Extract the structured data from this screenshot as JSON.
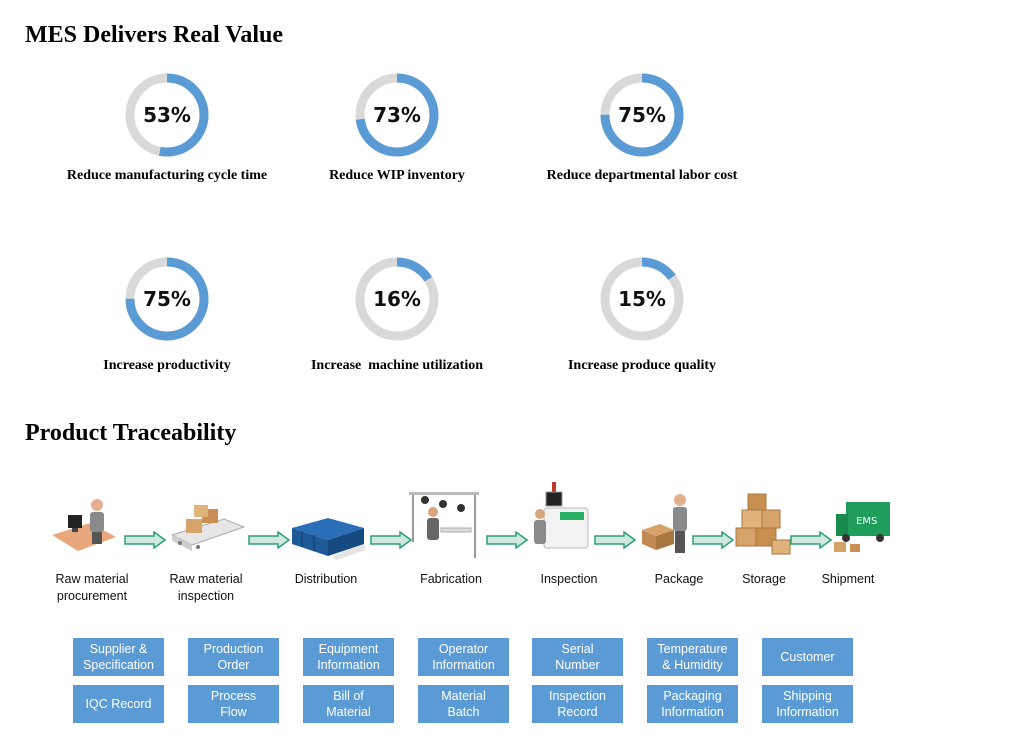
{
  "value_section": {
    "title": "MES Delivers Real Value",
    "metrics": [
      {
        "percent": 53,
        "percent_text": "53%",
        "label": "Reduce manufacturing cycle time"
      },
      {
        "percent": 73,
        "percent_text": "73%",
        "label": "Reduce WIP inventory"
      },
      {
        "percent": 75,
        "percent_text": "75%",
        "label": "Reduce departmental labor cost"
      },
      {
        "percent": 75,
        "percent_text": "75%",
        "label": "Increase productivity"
      },
      {
        "percent": 16,
        "percent_text": "16%",
        "label": "Increase  machine utilization"
      },
      {
        "percent": 15,
        "percent_text": "15%",
        "label": "Increase produce quality"
      }
    ],
    "ring_color": "#5b9bd5",
    "track_color": "#d9d9d9"
  },
  "trace_section": {
    "title": "Product Traceability",
    "steps": [
      {
        "label": "Raw material\nprocurement",
        "icon": "computer-worker-icon"
      },
      {
        "label": "Raw material\ninspection",
        "icon": "conveyor-boxes-icon"
      },
      {
        "label": "Distribution",
        "icon": "crate-pallet-icon"
      },
      {
        "label": "Fabrication",
        "icon": "assembly-station-icon"
      },
      {
        "label": "Inspection",
        "icon": "inspection-machine-icon"
      },
      {
        "label": "Package",
        "icon": "packing-worker-icon"
      },
      {
        "label": "Storage",
        "icon": "stacked-boxes-icon"
      },
      {
        "label": "Shipment",
        "icon": "ems-truck-icon"
      }
    ],
    "arrow_color": "#2e9e7a",
    "box_color": "#5b9bd5",
    "info_boxes": [
      {
        "top": "Supplier &\nSpecification",
        "bottom": "IQC Record"
      },
      {
        "top": "Production\nOrder",
        "bottom": "Process\nFlow"
      },
      {
        "top": "Equipment\nInformation",
        "bottom": "Bill of\nMaterial"
      },
      {
        "top": "Operator\nInformation",
        "bottom": "Material\nBatch"
      },
      {
        "top": "Serial\nNumber",
        "bottom": "Inspection\nRecord"
      },
      {
        "top": "Temperature\n& Humidity",
        "bottom": "Packaging\nInformation"
      },
      {
        "top": "Customer",
        "bottom": "Shipping\nInformation"
      }
    ]
  }
}
